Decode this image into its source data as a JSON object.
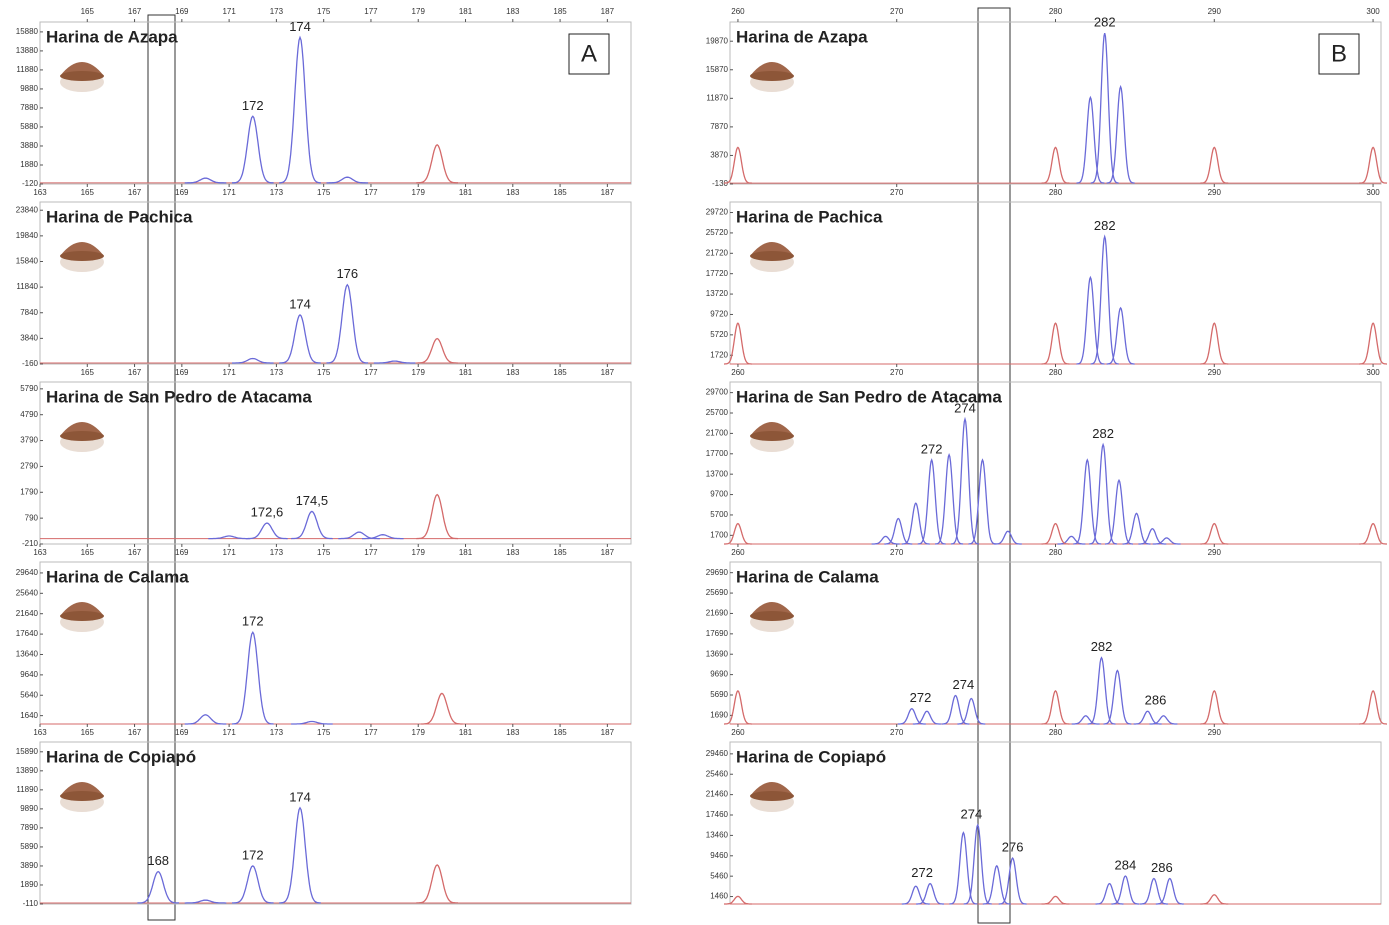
{
  "chart_data": [
    {
      "type": "line",
      "panel_label": "A",
      "title": "Harina de Azapa",
      "xlim": [
        163,
        188
      ],
      "xticks": [
        163,
        165,
        167,
        169,
        171,
        173,
        175,
        177,
        179,
        181,
        183,
        185,
        187
      ],
      "x2ticks": [
        165,
        167,
        169,
        171,
        173,
        175,
        177,
        179,
        181,
        183,
        185,
        187
      ],
      "ylim": [
        -120,
        16500
      ],
      "yticks": [
        -120,
        1880,
        3880,
        5880,
        7880,
        9880,
        11880,
        13880,
        15880
      ],
      "series": [
        {
          "color": "#6a6ad8",
          "x": [
            170,
            172,
            174,
            176
          ],
          "values": [
            500,
            7000,
            15300,
            600
          ]
        },
        {
          "color": "#d46a6a",
          "x": [
            179.8
          ],
          "values": [
            4000
          ]
        }
      ],
      "annotations": [
        {
          "text": "172",
          "x": 172
        },
        {
          "text": "174",
          "x": 174
        }
      ]
    },
    {
      "type": "line",
      "title": "Harina de Pachica",
      "xlim": [
        163,
        188
      ],
      "xticks": [
        165,
        167,
        169,
        171,
        173,
        175,
        177,
        179,
        181,
        183,
        185,
        187
      ],
      "ylim": [
        -160,
        24500
      ],
      "yticks": [
        -160,
        3840,
        7840,
        11840,
        15840,
        19840,
        23840
      ],
      "series": [
        {
          "color": "#6a6ad8",
          "x": [
            172,
            174,
            176,
            178
          ],
          "values": [
            700,
            7500,
            12200,
            300
          ]
        },
        {
          "color": "#d46a6a",
          "x": [
            179.8
          ],
          "values": [
            3800
          ]
        }
      ],
      "annotations": [
        {
          "text": "174",
          "x": 174
        },
        {
          "text": "176",
          "x": 176
        }
      ]
    },
    {
      "type": "line",
      "title": "Harina de San Pedro de Atacama",
      "xlim": [
        163,
        188
      ],
      "xticks": [
        163,
        165,
        167,
        169,
        171,
        173,
        175,
        177,
        179,
        181,
        183,
        185,
        187
      ],
      "ylim": [
        -210,
        5900
      ],
      "yticks": [
        -210,
        790,
        1790,
        2790,
        3790,
        4790,
        5790
      ],
      "series": [
        {
          "color": "#6a6ad8",
          "x": [
            171,
            172.6,
            174.5,
            176.5,
            177.5
          ],
          "values": [
            100,
            600,
            1050,
            250,
            150
          ]
        },
        {
          "color": "#d46a6a",
          "x": [
            179.8
          ],
          "values": [
            1700
          ]
        }
      ],
      "annotations": [
        {
          "text": "172,6",
          "x": 172.6
        },
        {
          "text": "174,5",
          "x": 174.5
        }
      ]
    },
    {
      "type": "line",
      "title": "Harina de Calama",
      "xlim": [
        163,
        188
      ],
      "xticks": [
        163,
        165,
        167,
        169,
        171,
        173,
        175,
        177,
        179,
        181,
        183,
        185,
        187
      ],
      "ylim": [
        0,
        31000
      ],
      "yticks": [
        1640,
        5640,
        9640,
        13640,
        17640,
        21640,
        25640,
        29640
      ],
      "series": [
        {
          "color": "#6a6ad8",
          "x": [
            170,
            172,
            174.5
          ],
          "values": [
            1800,
            18000,
            500
          ]
        },
        {
          "color": "#d46a6a",
          "x": [
            180
          ],
          "values": [
            6000
          ]
        }
      ],
      "annotations": [
        {
          "text": "172",
          "x": 172
        }
      ]
    },
    {
      "type": "line",
      "title": "Harina de Copiapó",
      "xlim": [
        163,
        188
      ],
      "ylim": [
        -110,
        16500
      ],
      "yticks": [
        -110,
        1890,
        3890,
        5890,
        7890,
        9890,
        11890,
        13890,
        15890
      ],
      "series": [
        {
          "color": "#6a6ad8",
          "x": [
            168,
            170,
            172,
            174
          ],
          "values": [
            3300,
            300,
            3900,
            10000
          ]
        },
        {
          "color": "#d46a6a",
          "x": [
            179.8
          ],
          "values": [
            4000
          ]
        }
      ],
      "annotations": [
        {
          "text": "168",
          "x": 168
        },
        {
          "text": "172",
          "x": 172
        },
        {
          "text": "174",
          "x": 174
        }
      ]
    },
    {
      "type": "line",
      "panel_label": "B",
      "title": "Harina de Azapa",
      "xlim": [
        259.5,
        300.5
      ],
      "xticks": [
        270,
        280,
        290,
        300
      ],
      "x2ticks": [
        260,
        270,
        280,
        290,
        300
      ],
      "ylim": [
        -130,
        22000
      ],
      "yticks": [
        -130,
        3870,
        7870,
        11870,
        15870,
        19870
      ],
      "series": [
        {
          "color": "#6a6ad8",
          "x": [
            282.2,
            283.1,
            284.1
          ],
          "values": [
            12000,
            21000,
            13500
          ]
        },
        {
          "color": "#d46a6a",
          "x": [
            260,
            280,
            290,
            300
          ],
          "values": [
            5000,
            5000,
            5000,
            5000
          ]
        }
      ],
      "annotations": [
        {
          "text": "282",
          "x": 283.1
        }
      ]
    },
    {
      "type": "line",
      "title": "Harina de Pachica",
      "xlim": [
        259.5,
        300.5
      ],
      "xticks": [
        260,
        270,
        280,
        290,
        300
      ],
      "ylim": [
        0,
        31000
      ],
      "yticks": [
        1720,
        5720,
        9720,
        13720,
        17720,
        21720,
        25720,
        29720
      ],
      "series": [
        {
          "color": "#6a6ad8",
          "x": [
            282.2,
            283.1,
            284.1
          ],
          "values": [
            17000,
            25000,
            11000
          ]
        },
        {
          "color": "#d46a6a",
          "x": [
            260,
            280,
            290,
            300
          ],
          "values": [
            8000,
            8000,
            8000,
            8000
          ]
        }
      ],
      "annotations": [
        {
          "text": "282",
          "x": 283.1
        }
      ]
    },
    {
      "type": "line",
      "title": "Harina de San Pedro de Atacama",
      "xlim": [
        259.5,
        300.5
      ],
      "xticks": [
        260,
        270,
        280,
        290
      ],
      "ylim": [
        0,
        31000
      ],
      "yticks": [
        1700,
        5700,
        9700,
        13700,
        17700,
        21700,
        25700,
        29700
      ],
      "series": [
        {
          "color": "#6a6ad8",
          "x": [
            269.3,
            270.1,
            271.2,
            272.2,
            273.3,
            274.3,
            275.4,
            277,
            281,
            282,
            283,
            284,
            285.1,
            286.1,
            287
          ],
          "values": [
            1500,
            5000,
            8000,
            16500,
            17500,
            24500,
            16500,
            2500,
            1500,
            16500,
            19500,
            12500,
            6000,
            3000,
            1200
          ]
        },
        {
          "color": "#d46a6a",
          "x": [
            260,
            280,
            290,
            300
          ],
          "values": [
            4000,
            4000,
            4000,
            4000
          ]
        }
      ],
      "annotations": [
        {
          "text": "272",
          "x": 272.2
        },
        {
          "text": "274",
          "x": 274.3
        },
        {
          "text": "282",
          "x": 283
        }
      ]
    },
    {
      "type": "line",
      "title": "Harina de Calama",
      "xlim": [
        259.5,
        300.5
      ],
      "xticks": [
        260,
        270,
        280,
        290
      ],
      "ylim": [
        0,
        31000
      ],
      "yticks": [
        1690,
        5690,
        9690,
        13690,
        17690,
        21690,
        25690,
        29690
      ],
      "series": [
        {
          "color": "#6a6ad8",
          "x": [
            270.95,
            271.9,
            273.7,
            274.7,
            281.9,
            282.9,
            283.9,
            285.8,
            286.8
          ],
          "values": [
            3000,
            2500,
            5600,
            5000,
            1600,
            13000,
            10500,
            2500,
            1600
          ]
        },
        {
          "color": "#d46a6a",
          "x": [
            260,
            280,
            290,
            300
          ],
          "values": [
            6500,
            6500,
            6500,
            6500
          ]
        }
      ],
      "annotations": [
        {
          "text": "272",
          "x": 271.5
        },
        {
          "text": "274",
          "x": 274.2
        },
        {
          "text": "282",
          "x": 282.9
        },
        {
          "text": "286",
          "x": 286.3
        }
      ]
    },
    {
      "type": "line",
      "title": "Harina de Copiapó",
      "xlim": [
        259.5,
        300.5
      ],
      "ylim": [
        0,
        31000
      ],
      "yticks": [
        1460,
        5460,
        9460,
        13460,
        17460,
        21460,
        25460,
        29460
      ],
      "series": [
        {
          "color": "#6a6ad8",
          "x": [
            271.2,
            272.1,
            274.2,
            275.1,
            276.3,
            277.3,
            283.4,
            284.4,
            286.2,
            287.2
          ],
          "values": [
            3500,
            4000,
            14000,
            15500,
            7500,
            9000,
            4000,
            5500,
            5000,
            5000
          ]
        },
        {
          "color": "#d46a6a",
          "x": [
            260,
            280,
            290
          ],
          "values": [
            1500,
            1500,
            1800
          ]
        }
      ],
      "annotations": [
        {
          "text": "272",
          "x": 271.6
        },
        {
          "text": "274",
          "x": 274.7
        },
        {
          "text": "276",
          "x": 277.3
        },
        {
          "text": "284",
          "x": 284.4
        },
        {
          "text": "286",
          "x": 286.7
        }
      ]
    }
  ]
}
